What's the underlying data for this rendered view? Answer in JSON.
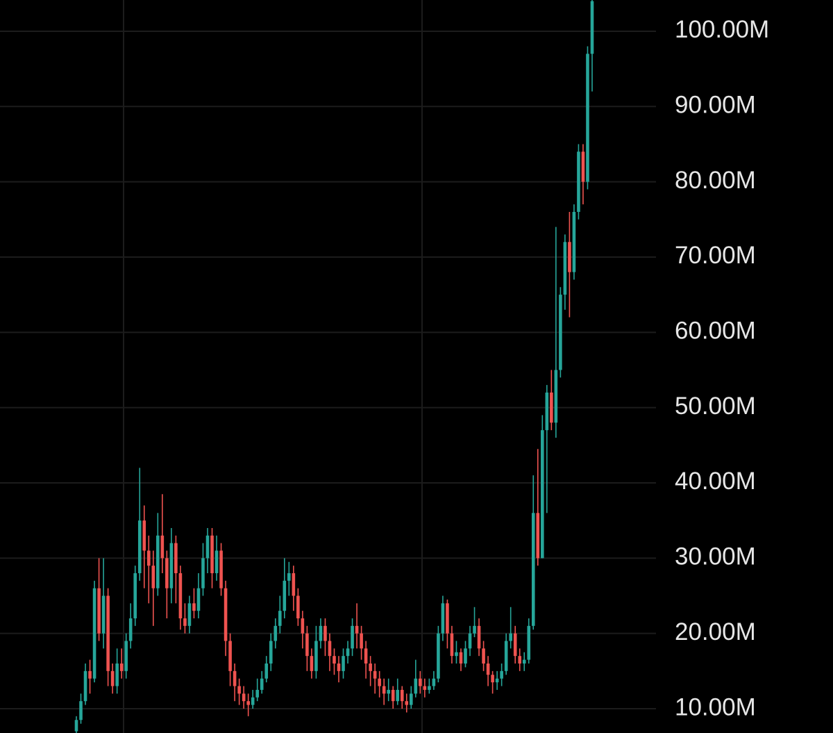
{
  "chart_data": {
    "type": "candlestick",
    "open": [
      7,
      8.5,
      11,
      15,
      14,
      26,
      20,
      25,
      15,
      13,
      16,
      15,
      19,
      22,
      28,
      35,
      31,
      29,
      26,
      33,
      30,
      26,
      32,
      28,
      22,
      21,
      24,
      23,
      26,
      30,
      33,
      28,
      31,
      26,
      19,
      15,
      13,
      12,
      11,
      10.5,
      11.5,
      12.5,
      14,
      16,
      19,
      21,
      23,
      27,
      28,
      25,
      22,
      20,
      17,
      15,
      19,
      21,
      19,
      17,
      16,
      15,
      17,
      18,
      21,
      20,
      18,
      16,
      15,
      14,
      13,
      12,
      12.5,
      11,
      12.5,
      11,
      10.5,
      12,
      14,
      13,
      12.5,
      13,
      14,
      20,
      24,
      20,
      17,
      17.5,
      16,
      18,
      20,
      21,
      18,
      16,
      14.5,
      13.5,
      14,
      15,
      19,
      20,
      17,
      16,
      16.5,
      21,
      36,
      30,
      47,
      52,
      48,
      55,
      65,
      72,
      68,
      76,
      84,
      80,
      97
    ],
    "high": [
      9,
      12,
      16,
      16.5,
      27,
      30,
      30,
      26,
      16,
      18,
      18,
      20,
      24,
      29,
      42,
      37,
      33,
      31,
      36,
      38.5,
      31,
      34,
      33,
      29,
      24,
      25,
      26,
      28,
      32,
      34,
      34,
      33,
      32,
      27,
      20,
      16,
      14,
      13,
      12,
      12.5,
      14,
      15,
      17,
      20,
      22,
      25,
      30,
      29.5,
      29,
      26,
      23,
      21,
      18,
      21,
      22,
      22,
      20,
      18,
      17,
      18,
      19,
      22,
      24,
      21,
      19,
      17,
      16,
      15,
      14,
      14,
      13,
      14,
      13,
      12,
      13,
      16.5,
      15,
      14,
      14,
      15,
      21,
      25,
      24.5,
      21,
      19,
      18,
      19,
      21,
      23.5,
      22,
      19,
      17,
      15,
      15,
      16,
      20,
      23.5,
      21,
      18,
      17.5,
      22,
      41,
      44.5,
      49,
      53,
      55,
      74,
      66,
      73,
      76,
      77,
      85,
      85,
      98,
      104.5
    ],
    "low": [
      6.5,
      8,
      10.5,
      12,
      13.5,
      19,
      18,
      13,
      12,
      12,
      14,
      14,
      18,
      21,
      27,
      26,
      24,
      21,
      25,
      28,
      22,
      24,
      24,
      20.5,
      20,
      20,
      22,
      22,
      25,
      28,
      26,
      27,
      25,
      17,
      13,
      11,
      10.5,
      10,
      9,
      10,
      11,
      12,
      13.5,
      15,
      18,
      20,
      22,
      25,
      23,
      21,
      18,
      15,
      14,
      14,
      18,
      17,
      15,
      14.5,
      13.5,
      14,
      16,
      17,
      18,
      16.5,
      14,
      13,
      12,
      11.5,
      10.5,
      11,
      10,
      10.5,
      10,
      9.5,
      10,
      11.5,
      12,
      11.5,
      12,
      12.5,
      13.5,
      19,
      18,
      16,
      16,
      15,
      15.5,
      17,
      19.5,
      17,
      15,
      13,
      12,
      12.5,
      13,
      14.5,
      18,
      16,
      15,
      15,
      16,
      20.5,
      29,
      30,
      36,
      47,
      46,
      54,
      63,
      62,
      67,
      75,
      77,
      79,
      92
    ],
    "close": [
      8.5,
      11,
      15,
      14,
      26,
      20,
      25,
      15,
      13,
      16,
      15,
      19,
      22,
      28,
      35,
      31,
      29,
      26,
      33,
      30,
      26,
      32,
      28,
      22,
      21,
      24,
      23,
      26,
      30,
      33,
      28,
      31,
      26,
      19,
      15,
      13,
      12,
      11,
      10.5,
      11.5,
      12.5,
      14,
      16,
      19,
      21,
      23,
      27,
      28,
      25,
      22,
      20,
      17,
      15,
      19,
      21,
      19,
      17,
      16,
      15,
      17,
      18,
      21,
      20,
      18,
      16,
      15,
      14,
      13,
      12,
      12.5,
      11,
      12.5,
      11,
      10.5,
      12,
      14,
      13,
      12.5,
      13,
      14,
      20,
      24,
      20,
      17,
      17.5,
      16,
      18,
      20,
      21,
      18,
      16,
      14.5,
      13.5,
      14,
      15,
      19,
      20,
      17,
      16,
      16.5,
      21,
      36,
      30,
      47,
      52,
      48,
      55,
      65,
      72,
      68,
      76,
      84,
      80,
      97,
      104
    ],
    "up_color": "#26a69a",
    "down_color": "#ef5350",
    "ylim": [
      6.77,
      104.15
    ],
    "yticks": [
      {
        "value": 10,
        "label": "10.00M"
      },
      {
        "value": 20,
        "label": "20.00M"
      },
      {
        "value": 30,
        "label": "30.00M"
      },
      {
        "value": 40,
        "label": "40.00M"
      },
      {
        "value": 50,
        "label": "50.00M"
      },
      {
        "value": 60,
        "label": "60.00M"
      },
      {
        "value": 70,
        "label": "70.00M"
      },
      {
        "value": 80,
        "label": "80.00M"
      },
      {
        "value": 90,
        "label": "90.00M"
      },
      {
        "value": 100,
        "label": "100.00M"
      }
    ],
    "grid": true
  }
}
